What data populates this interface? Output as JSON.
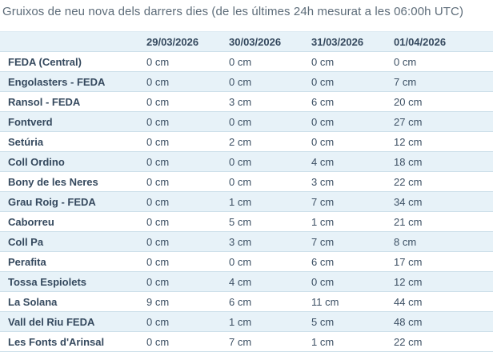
{
  "title": "Gruixos de neu nova dels darrers dies (de les últimes 24h mesurat a les 06:00h UTC)",
  "colors": {
    "stripe_bg": "#e7f2f8",
    "row_border": "#ccdfe9",
    "text": "#3b4f63",
    "title_text": "#5d6c79"
  },
  "chart_data": {
    "type": "table",
    "title": "Gruixos de neu nova dels darrers dies (de les últimes 24h mesurat a les 06:00h UTC)",
    "unit": "cm",
    "columns": [
      "",
      "29/03/2026",
      "30/03/2026",
      "31/03/2026",
      "01/04/2026"
    ],
    "rows": [
      {
        "station": "FEDA (Central)",
        "values": [
          0,
          0,
          0,
          0
        ]
      },
      {
        "station": "Engolasters - FEDA",
        "values": [
          0,
          0,
          0,
          7
        ]
      },
      {
        "station": "Ransol - FEDA",
        "values": [
          0,
          3,
          6,
          20
        ]
      },
      {
        "station": "Fontverd",
        "values": [
          0,
          0,
          0,
          27
        ]
      },
      {
        "station": "Setúria",
        "values": [
          0,
          2,
          0,
          12
        ]
      },
      {
        "station": "Coll Ordino",
        "values": [
          0,
          0,
          4,
          18
        ]
      },
      {
        "station": "Bony de les Neres",
        "values": [
          0,
          0,
          3,
          22
        ]
      },
      {
        "station": "Grau Roig - FEDA",
        "values": [
          0,
          1,
          7,
          34
        ]
      },
      {
        "station": "Caborreu",
        "values": [
          0,
          5,
          1,
          21
        ]
      },
      {
        "station": "Coll Pa",
        "values": [
          0,
          3,
          7,
          8
        ]
      },
      {
        "station": "Perafita",
        "values": [
          0,
          0,
          6,
          17
        ]
      },
      {
        "station": "Tossa Espiolets",
        "values": [
          0,
          4,
          0,
          12
        ]
      },
      {
        "station": "La Solana",
        "values": [
          9,
          6,
          11,
          44
        ]
      },
      {
        "station": "Vall del Riu FEDA",
        "values": [
          0,
          1,
          5,
          48
        ]
      },
      {
        "station": "Les Fonts d'Arinsal",
        "values": [
          0,
          7,
          1,
          22
        ]
      }
    ]
  }
}
